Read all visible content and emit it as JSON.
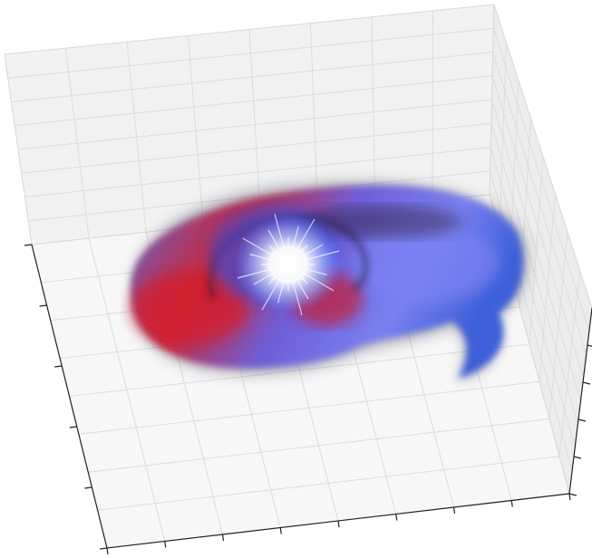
{
  "chart_data": {
    "type": "surface3d",
    "grid": true
  }
}
